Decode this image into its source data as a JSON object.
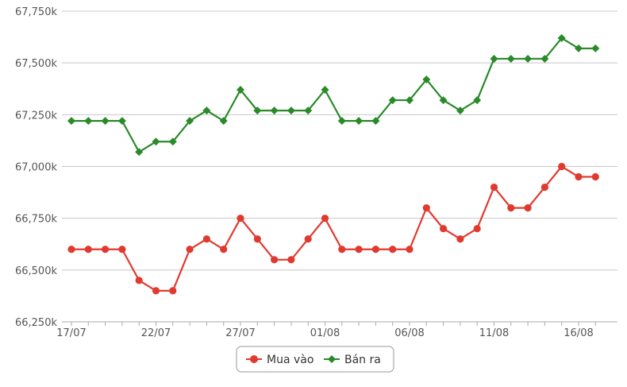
{
  "chart_data": {
    "type": "line",
    "x": [
      "17/07",
      "18/07",
      "19/07",
      "20/07",
      "21/07",
      "22/07",
      "23/07",
      "24/07",
      "25/07",
      "26/07",
      "27/07",
      "28/07",
      "29/07",
      "30/07",
      "31/07",
      "01/08",
      "02/08",
      "03/08",
      "04/08",
      "05/08",
      "06/08",
      "07/08",
      "08/08",
      "09/08",
      "10/08",
      "11/08",
      "12/08",
      "13/08",
      "14/08",
      "15/08",
      "16/08",
      "17/08"
    ],
    "x_tick_labels": [
      "17/07",
      "22/07",
      "27/07",
      "01/08",
      "06/08",
      "11/08",
      "16/08"
    ],
    "y_tick_labels": [
      "66,250k",
      "66,500k",
      "66,750k",
      "67,000k",
      "67,250k",
      "67,500k",
      "67,750k"
    ],
    "y_ticks": [
      66250,
      66500,
      66750,
      67000,
      67250,
      67500,
      67750
    ],
    "ylim": [
      66250,
      67750
    ],
    "grid": true,
    "legend_position": "bottom-center",
    "series": [
      {
        "name": "Mua vào",
        "color": "#e03a2f",
        "marker": "circle",
        "values": [
          66600,
          66600,
          66600,
          66600,
          66450,
          66400,
          66400,
          66600,
          66650,
          66600,
          66750,
          66650,
          66550,
          66550,
          66650,
          66750,
          66600,
          66600,
          66600,
          66600,
          66600,
          66800,
          66700,
          66650,
          66700,
          66900,
          66800,
          66800,
          66900,
          67000,
          66950,
          66950
        ]
      },
      {
        "name": "Bán ra",
        "color": "#2a8a2a",
        "marker": "diamond",
        "values": [
          67220,
          67220,
          67220,
          67220,
          67070,
          67120,
          67120,
          67220,
          67270,
          67220,
          67370,
          67270,
          67270,
          67270,
          67270,
          67370,
          67220,
          67220,
          67220,
          67320,
          67320,
          67420,
          67320,
          67270,
          67320,
          67520,
          67520,
          67520,
          67520,
          67620,
          67570,
          67570
        ]
      }
    ]
  }
}
